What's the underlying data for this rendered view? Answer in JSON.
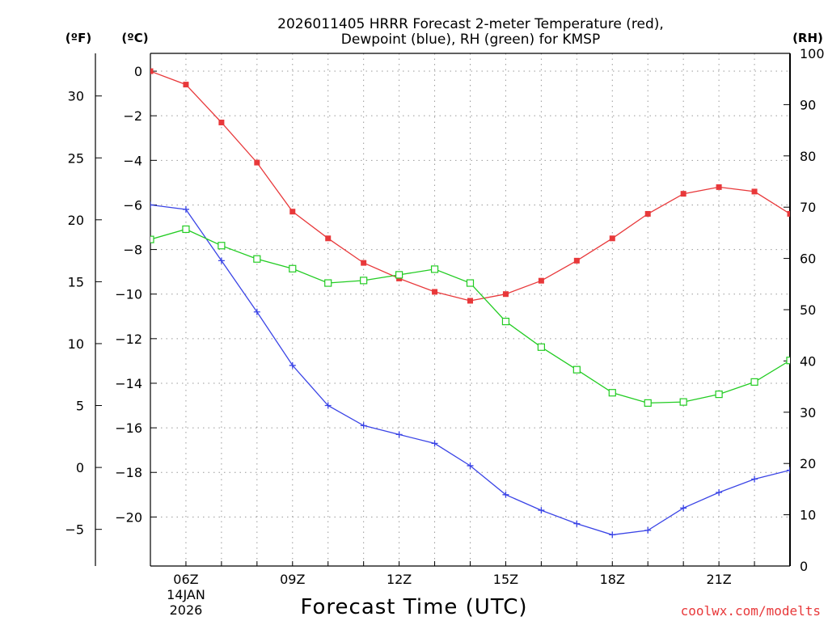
{
  "chart_data": {
    "type": "line",
    "title_line1": "2026011405 HRRR Forecast 2-meter Temperature (red),",
    "title_line2": "Dewpoint (blue), RH (green) for KMSP",
    "xlabel": "Forecast Time (UTC)",
    "left_outer_unit": "(ºF)",
    "left_inner_unit": "(ºC)",
    "right_unit": "(RH)",
    "credit": "coolwx.com/modelts",
    "x_hours": [
      5,
      6,
      7,
      8,
      9,
      10,
      11,
      12,
      13,
      14,
      15,
      16,
      17,
      18,
      19,
      20,
      21,
      22,
      23
    ],
    "x_tick_labels": [
      {
        "hour": 6,
        "label": "06Z"
      },
      {
        "hour": 9,
        "label": "09Z"
      },
      {
        "hour": 12,
        "label": "12Z"
      },
      {
        "hour": 15,
        "label": "15Z"
      },
      {
        "hour": 18,
        "label": "18Z"
      },
      {
        "hour": 21,
        "label": "21Z"
      }
    ],
    "date_label_line1": "14JAN",
    "date_label_line2": "2026",
    "celsius_ylim": [
      -22.2,
      0.8
    ],
    "celsius_ticks": [
      0,
      -2,
      -4,
      -6,
      -8,
      -10,
      -12,
      -14,
      -16,
      -18,
      -20
    ],
    "fahrenheit_ticks": [
      30,
      25,
      20,
      15,
      10,
      5,
      0,
      -5
    ],
    "rh_ylim": [
      0,
      100
    ],
    "rh_ticks": [
      0,
      10,
      20,
      30,
      40,
      50,
      60,
      70,
      80,
      90,
      100
    ],
    "series": [
      {
        "name": "2-meter Temperature",
        "axis": "C",
        "color": "#e8383a",
        "marker": "filled-square",
        "values": [
          0.0,
          -0.6,
          -2.3,
          -4.1,
          -6.3,
          -7.5,
          -8.6,
          -9.3,
          -9.9,
          -10.3,
          -10.0,
          -9.4,
          -8.5,
          -7.5,
          -6.4,
          -5.5,
          -5.2,
          -5.4,
          -6.4
        ]
      },
      {
        "name": "Dewpoint",
        "axis": "C",
        "color": "#3a44e6",
        "marker": "plus",
        "values": [
          -6.0,
          -6.2,
          -8.5,
          -10.8,
          -13.2,
          -15.0,
          -15.9,
          -16.3,
          -16.7,
          -17.7,
          -19.0,
          -19.7,
          -20.3,
          -20.8,
          -20.6,
          -19.6,
          -18.9,
          -18.3,
          -17.9
        ]
      },
      {
        "name": "RH",
        "axis": "RH",
        "color": "#22cc22",
        "marker": "open-square",
        "values": [
          63.7,
          65.7,
          62.5,
          59.9,
          58.0,
          55.2,
          55.7,
          56.8,
          57.9,
          55.2,
          47.7,
          42.7,
          38.3,
          33.8,
          31.8,
          32.0,
          33.5,
          35.9,
          40.1
        ]
      }
    ]
  }
}
